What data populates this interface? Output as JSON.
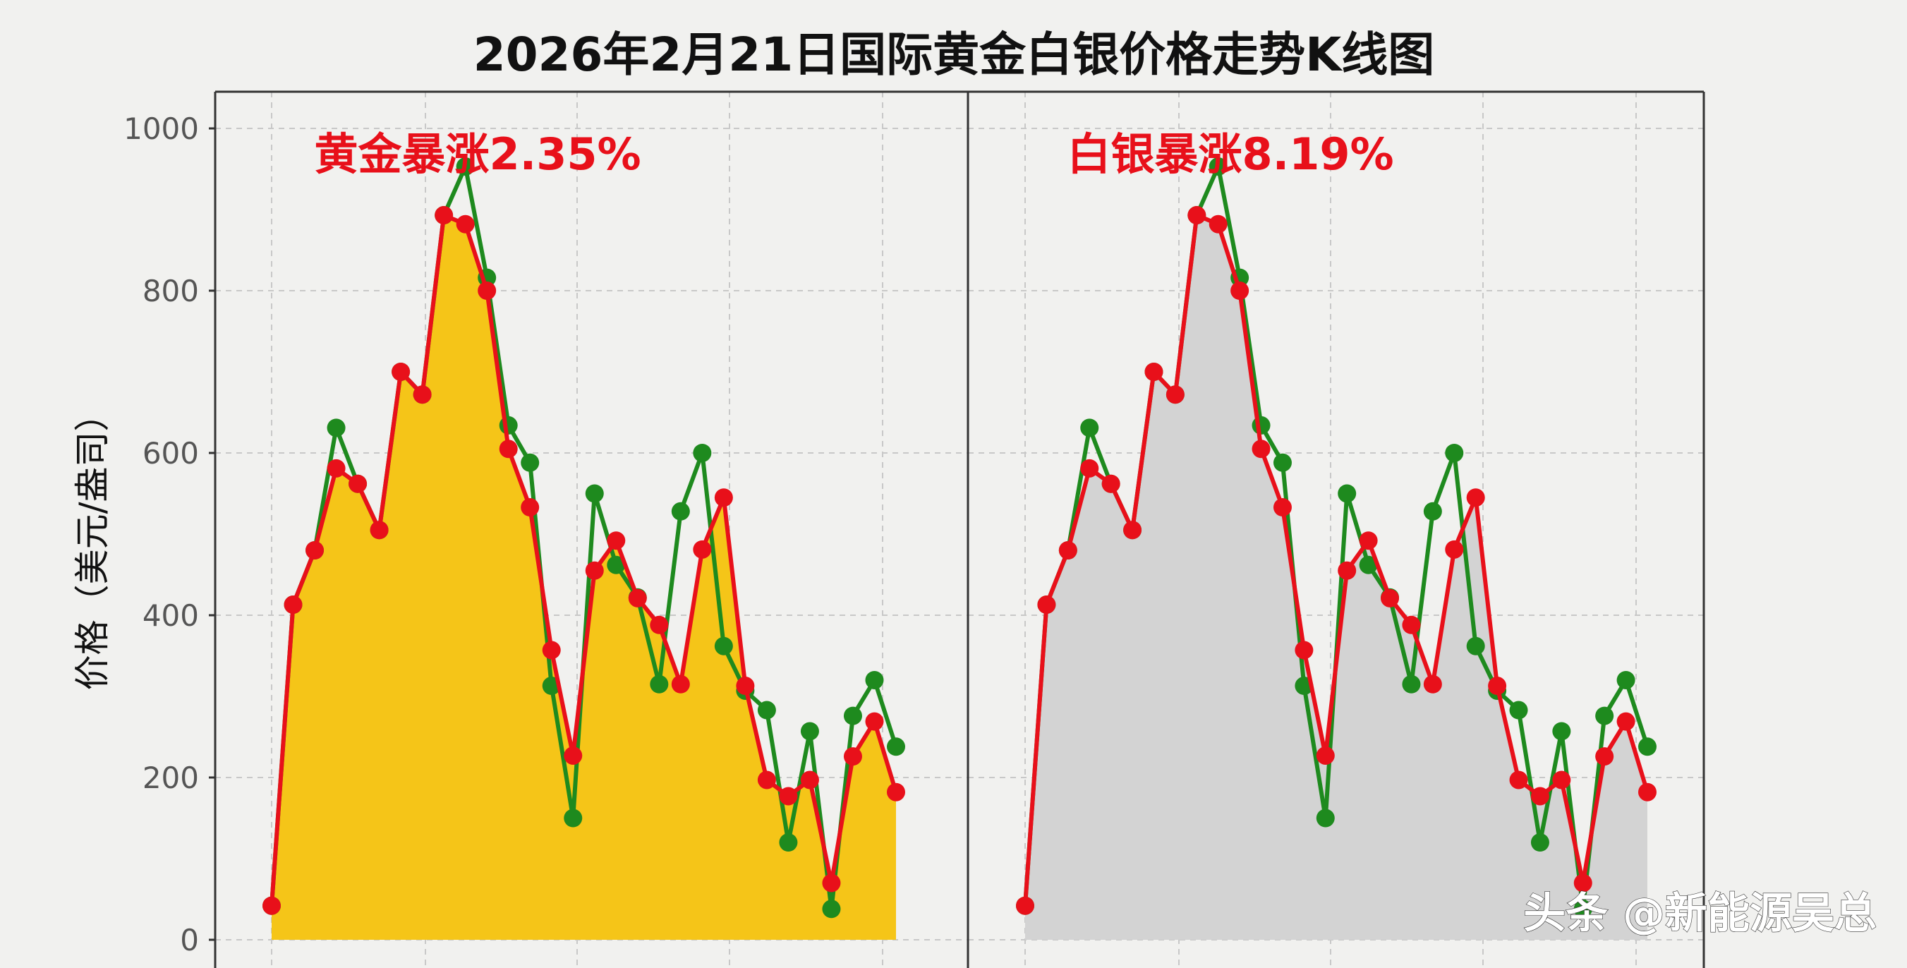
{
  "chart_data": {
    "type": "line",
    "title": "2026年2月21日国际黄金白银价格走势K线图",
    "ylabel": "价格（美元/盎司）",
    "xlabel": "",
    "ylim": [
      0,
      1000
    ],
    "yticks": [
      0,
      200,
      400,
      600,
      800,
      1000
    ],
    "grid": true,
    "panels": [
      {
        "annotation": "黄金暴涨2.35%",
        "fill_color": "#f5c518",
        "series": [
          {
            "color": "#1e8a1e",
            "values": [
              42,
              413,
              480,
              631,
              562,
              505,
              700,
              672,
              893,
              953,
              816,
              634,
              588,
              313,
              150,
              550,
              462,
              422,
              315,
              528,
              600,
              362,
              307,
              283,
              120,
              257,
              38,
              276,
              320,
              238
            ]
          },
          {
            "color": "#e8101a",
            "values": [
              42,
              413,
              480,
              581,
              562,
              505,
              700,
              672,
              893,
              882,
              800,
              605,
              533,
              357,
              227,
              455,
              492,
              421,
              388,
              315,
              481,
              545,
              313,
              197,
              177,
              197,
              70,
              226,
              269,
              182
            ]
          }
        ]
      },
      {
        "annotation": "白银暴涨8.19%",
        "fill_color": "#d3d3d3",
        "series": [
          {
            "color": "#1e8a1e",
            "values": [
              42,
              413,
              480,
              631,
              562,
              505,
              700,
              672,
              893,
              953,
              816,
              634,
              588,
              313,
              150,
              550,
              462,
              422,
              315,
              528,
              600,
              362,
              307,
              283,
              120,
              257,
              38,
              276,
              320,
              238
            ]
          },
          {
            "color": "#e8101a",
            "values": [
              42,
              413,
              480,
              581,
              562,
              505,
              700,
              672,
              893,
              882,
              800,
              605,
              533,
              357,
              227,
              455,
              492,
              421,
              388,
              315,
              481,
              545,
              313,
              197,
              177,
              197,
              70,
              226,
              269,
              182
            ]
          }
        ]
      }
    ]
  },
  "watermark": "头条 @新能源吴总",
  "colors": {
    "annotation": "#e8101a",
    "background": "#f1f1ef",
    "grid": "#c8c8c8"
  }
}
